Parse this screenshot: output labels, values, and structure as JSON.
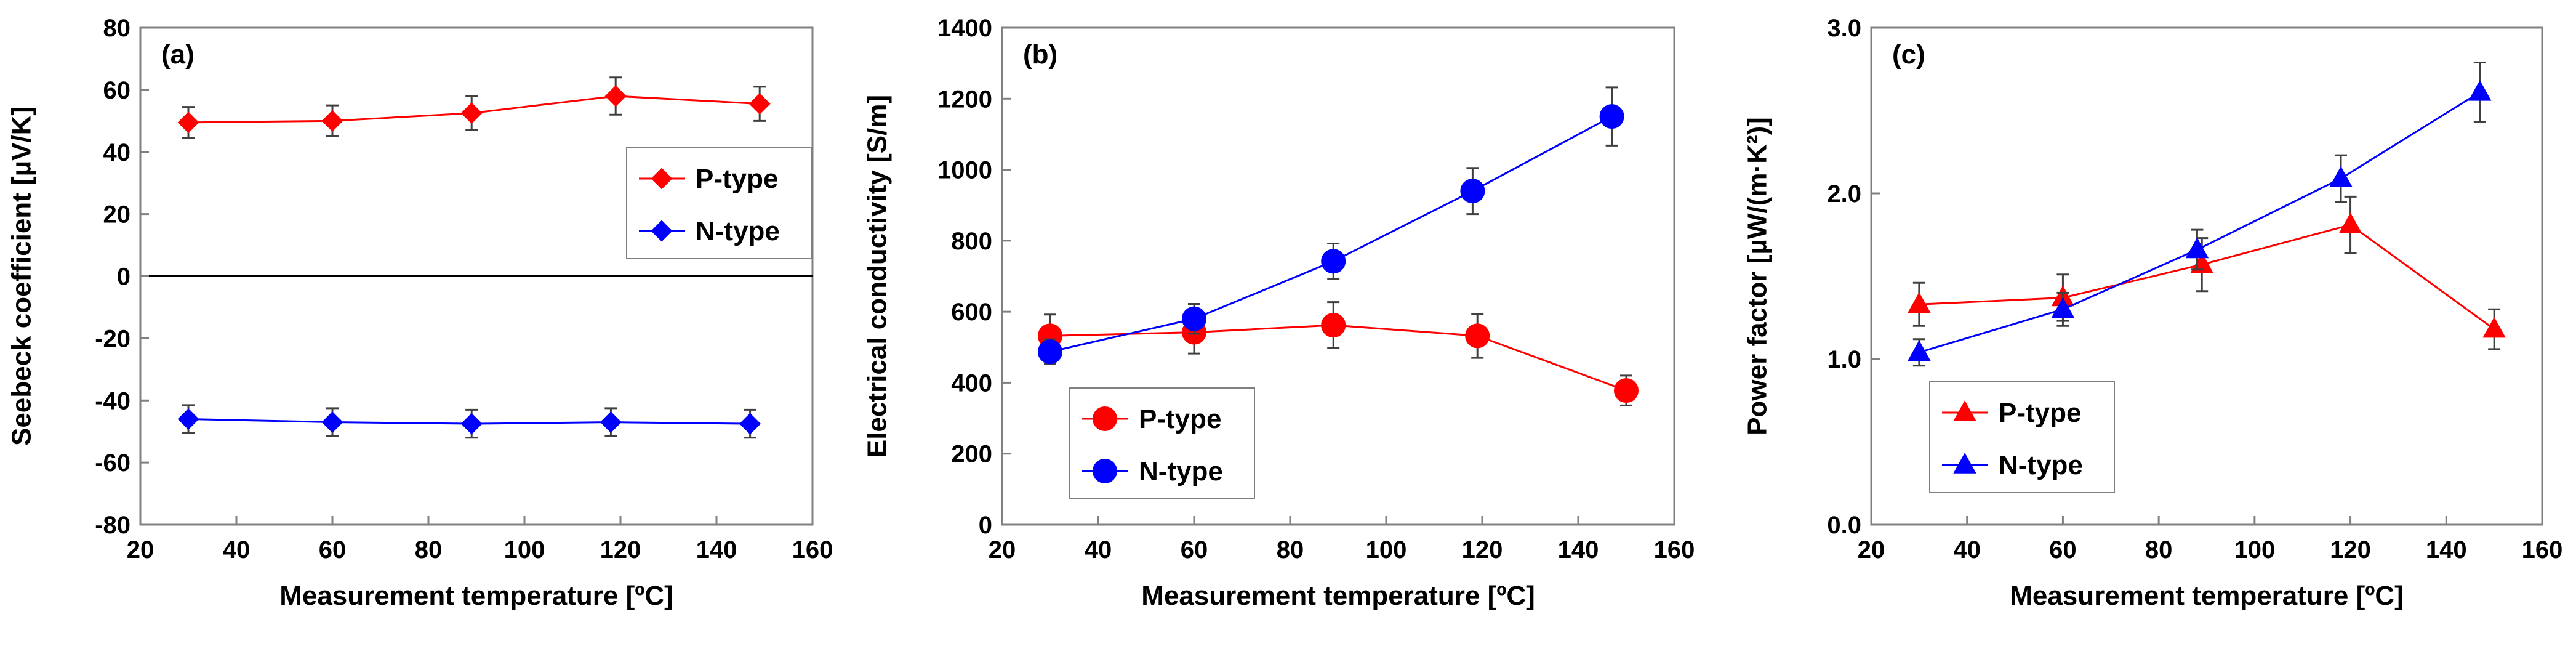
{
  "figure_title": "",
  "chart_data": [
    {
      "type": "scatter",
      "panel": "(a)",
      "title": "",
      "xlabel": "Measurement temperature [ºC]",
      "ylabel": "Seebeck coefficient [µV/K]",
      "xlim": [
        20,
        160
      ],
      "ylim": [
        -80,
        80
      ],
      "xticks": [
        20,
        40,
        60,
        80,
        100,
        120,
        140,
        160
      ],
      "yticks": [
        -80,
        -60,
        -40,
        -20,
        0,
        20,
        40,
        60,
        80
      ],
      "tick_decimals": 0,
      "zero_line": true,
      "marker": "diamond",
      "grid": false,
      "legend_position": "right-middle",
      "series": [
        {
          "name": "P-type",
          "color": "#ff0000",
          "x": [
            30,
            60,
            89,
            119,
            149
          ],
          "y": [
            49.5,
            50.0,
            52.5,
            58.0,
            55.5
          ],
          "err": [
            5.0,
            5.0,
            5.5,
            6.0,
            5.5
          ]
        },
        {
          "name": "N-type",
          "color": "#0000ff",
          "x": [
            30,
            60,
            89,
            118,
            147
          ],
          "y": [
            -46.0,
            -47.0,
            -47.5,
            -47.0,
            -47.5
          ],
          "err": [
            4.5,
            4.5,
            4.5,
            4.5,
            4.5
          ]
        }
      ]
    },
    {
      "type": "scatter",
      "panel": "(b)",
      "title": "",
      "xlabel": "Measurement temperature [ºC]",
      "ylabel": "Electrical conductivity [S/m]",
      "xlim": [
        20,
        160
      ],
      "ylim": [
        0,
        1400
      ],
      "xticks": [
        20,
        40,
        60,
        80,
        100,
        120,
        140,
        160
      ],
      "yticks": [
        0,
        200,
        400,
        600,
        800,
        1000,
        1200,
        1400
      ],
      "tick_decimals": 0,
      "zero_line": false,
      "marker": "circle",
      "grid": false,
      "legend_position": "bottom-middle",
      "series": [
        {
          "name": "P-type",
          "color": "#ff0000",
          "x": [
            30,
            60,
            89,
            119,
            150
          ],
          "y": [
            532,
            542,
            562,
            532,
            378
          ],
          "err": [
            60,
            60,
            65,
            62,
            42
          ]
        },
        {
          "name": "N-type",
          "color": "#0000ff",
          "x": [
            30,
            60,
            89,
            118,
            147
          ],
          "y": [
            487,
            580,
            742,
            940,
            1150
          ],
          "err": [
            35,
            42,
            50,
            65,
            82
          ]
        }
      ]
    },
    {
      "type": "scatter",
      "panel": "(c)",
      "title": "",
      "xlabel": "Measurement temperature [ºC]",
      "ylabel": "Power factor [µW/(m·K²)]",
      "xlim": [
        20,
        160
      ],
      "ylim": [
        0.0,
        3.0
      ],
      "xticks": [
        20,
        40,
        60,
        80,
        100,
        120,
        140,
        160
      ],
      "yticks": [
        0.0,
        1.0,
        2.0,
        3.0
      ],
      "tick_decimals": 1,
      "zero_line": false,
      "marker": "triangle",
      "grid": false,
      "legend_position": "bottom-left",
      "series": [
        {
          "name": "P-type",
          "color": "#ff0000",
          "x": [
            30,
            60,
            89,
            120,
            150
          ],
          "y": [
            1.33,
            1.37,
            1.57,
            1.81,
            1.18
          ],
          "err": [
            0.13,
            0.14,
            0.16,
            0.17,
            0.12
          ]
        },
        {
          "name": "N-type",
          "color": "#0000ff",
          "x": [
            30,
            60,
            88,
            118,
            147
          ],
          "y": [
            1.04,
            1.3,
            1.66,
            2.09,
            2.61
          ],
          "err": [
            0.08,
            0.1,
            0.12,
            0.14,
            0.18
          ]
        }
      ]
    }
  ]
}
